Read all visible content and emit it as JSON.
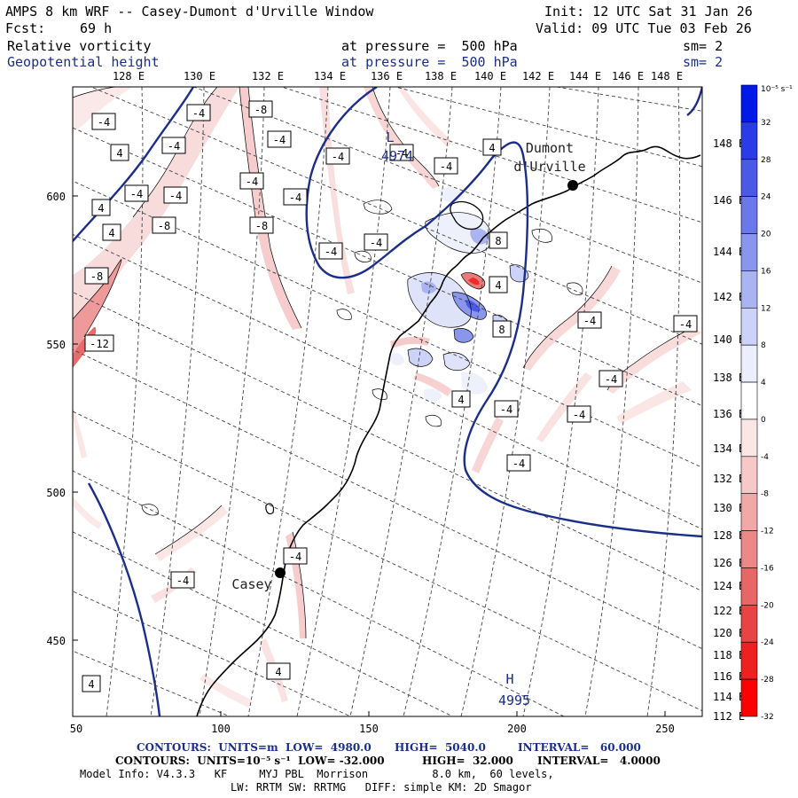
{
  "header": {
    "title": "AMPS 8 km WRF -- Casey-Dumont d'Urville Window",
    "init": "Init: 12 UTC Sat 31 Jan 26",
    "fcst_label": "Fcst:",
    "fcst_value": "69 h",
    "valid": "Valid: 09 UTC Tue 03 Feb 26",
    "field1_name": "Relative vorticity",
    "field1_level": "at pressure =  500 hPa",
    "field1_sm": "sm= 2",
    "field2_name": "Geopotential height",
    "field2_level": "at pressure =  500 hPa",
    "field2_sm": "sm= 2"
  },
  "map": {
    "top_lon_labels": [
      "128 E",
      "130 E",
      "132 E",
      "134 E",
      "136 E",
      "138 E",
      "140 E",
      "142 E",
      "144 E",
      "146 E",
      "148 E"
    ],
    "left_y_labels": [
      "600",
      "550",
      "500",
      "450"
    ],
    "bottom_x_labels": [
      "50",
      "100",
      "150",
      "200",
      "250"
    ],
    "right_lon_labels": [
      "148 E",
      "146 E",
      "144 E",
      "142 E",
      "140 E",
      "138 E",
      "136 E",
      "134 E",
      "132 E",
      "130 E",
      "128 E",
      "126 E",
      "124 E",
      "122 E",
      "120 E",
      "118 E",
      "116 E",
      "114 E",
      "112 E"
    ],
    "stations": [
      {
        "name": "Dumont",
        "name2": "d'Urville"
      },
      {
        "name": "Casey"
      }
    ],
    "lows": [
      {
        "letter": "L",
        "value": "4974"
      }
    ],
    "highs": [
      {
        "letter": "H",
        "value": "4995"
      }
    ],
    "vort_labels": [
      "-4",
      "4",
      "-4",
      "-8",
      "-4",
      "4",
      "-4",
      "-4",
      "4",
      "-8",
      "-4",
      "-4",
      "-8",
      "-4",
      "4",
      "-4",
      "-4",
      "-4",
      "8",
      "4",
      "-8",
      "-12",
      "-4",
      "4",
      "8",
      "-4",
      "-4",
      "4",
      "-4",
      "-4",
      "-4",
      "-4",
      "-4",
      "-4",
      "-4",
      "4"
    ]
  },
  "colorbar": {
    "unit": "10⁻⁵ s⁻¹",
    "labels": [
      "32",
      "28",
      "24",
      "20",
      "16",
      "12",
      "8",
      "4",
      "0",
      "-4",
      "-8",
      "-12",
      "-16",
      "-20",
      "-24",
      "-28",
      "-32"
    ],
    "colors": [
      "#0018e8",
      "#2a3ce8",
      "#4a5ae6",
      "#6a78ea",
      "#8a96ee",
      "#aab4f2",
      "#ccd2f8",
      "#eceefc",
      "#ffffff",
      "#fbe6e6",
      "#f6c8c8",
      "#f0a8a8",
      "#ec8888",
      "#e86666",
      "#e84444",
      "#ee2020",
      "#ff0000"
    ]
  },
  "footer": {
    "line1_a": "CONTOURS:  UNITS=m  LOW=  4980.0",
    "line1_b": "HIGH=  5040.0",
    "line1_c": "INTERVAL=   60.000",
    "line2_a": "CONTOURS:  UNITS=10⁻⁵ s⁻¹  LOW= -32.000",
    "line2_b": "HIGH=  32.000",
    "line2_c": "INTERVAL=   4.0000",
    "line3": "Model Info: V4.3.3   KF     MYJ PBL  Morrison          8.0 km,  60 levels,",
    "line4": "LW: RRTM SW: RRTMG   DIFF: simple KM: 2D Smagor"
  }
}
